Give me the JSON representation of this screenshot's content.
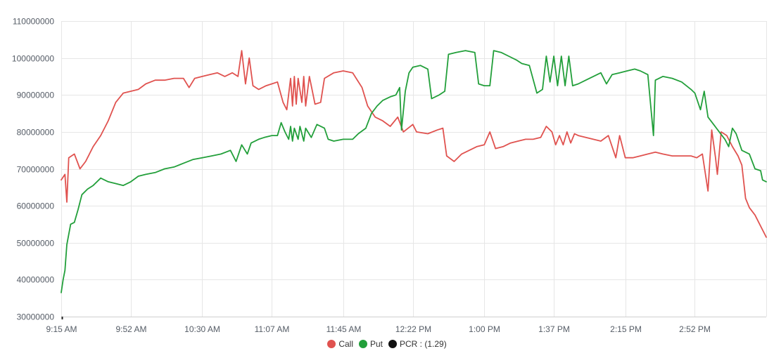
{
  "chart_data": {
    "type": "line",
    "title": "",
    "xlabel": "",
    "ylabel": "",
    "ylim": [
      30000000,
      110000000
    ],
    "yticks": [
      30000000,
      40000000,
      50000000,
      60000000,
      70000000,
      80000000,
      90000000,
      100000000,
      110000000
    ],
    "ytick_labels": [
      "30000000",
      "40000000",
      "50000000",
      "60000000",
      "70000000",
      "80000000",
      "90000000",
      "100000000",
      "110000000"
    ],
    "xlim": [
      "9:15 AM",
      "3:30 PM"
    ],
    "xtick_labels": [
      "9:15 AM",
      "9:52 AM",
      "10:30 AM",
      "11:07 AM",
      "11:45 AM",
      "12:22 PM",
      "1:00 PM",
      "1:37 PM",
      "2:15 PM",
      "2:52 PM"
    ],
    "grid": true,
    "legend_placement": "bottom-center",
    "series": [
      {
        "name": "Call",
        "color": "#e0524f",
        "points": [
          [
            "9:15 AM",
            67000000
          ],
          [
            "9:17 AM",
            68500000
          ],
          [
            "9:18 AM",
            61000000
          ],
          [
            "9:19 AM",
            73000000
          ],
          [
            "9:22 AM",
            74000000
          ],
          [
            "9:25 AM",
            70000000
          ],
          [
            "9:28 AM",
            72000000
          ],
          [
            "9:32 AM",
            76000000
          ],
          [
            "9:36 AM",
            79000000
          ],
          [
            "9:40 AM",
            83000000
          ],
          [
            "9:44 AM",
            88000000
          ],
          [
            "9:48 AM",
            90500000
          ],
          [
            "9:52 AM",
            91000000
          ],
          [
            "9:56 AM",
            91500000
          ],
          [
            "10:00 AM",
            93000000
          ],
          [
            "10:05 AM",
            94000000
          ],
          [
            "10:10 AM",
            94000000
          ],
          [
            "10:15 AM",
            94500000
          ],
          [
            "10:20 AM",
            94500000
          ],
          [
            "10:23 AM",
            92000000
          ],
          [
            "10:26 AM",
            94500000
          ],
          [
            "10:30 AM",
            95000000
          ],
          [
            "10:34 AM",
            95500000
          ],
          [
            "10:38 AM",
            96000000
          ],
          [
            "10:42 AM",
            95000000
          ],
          [
            "10:46 AM",
            96000000
          ],
          [
            "10:49 AM",
            95000000
          ],
          [
            "10:51 AM",
            102000000
          ],
          [
            "10:53 AM",
            93000000
          ],
          [
            "10:55 AM",
            100000000
          ],
          [
            "10:57 AM",
            92500000
          ],
          [
            "11:00 AM",
            91500000
          ],
          [
            "11:04 AM",
            92500000
          ],
          [
            "11:07 AM",
            93000000
          ],
          [
            "11:10 AM",
            93500000
          ],
          [
            "11:13 AM",
            88000000
          ],
          [
            "11:15 AM",
            86000000
          ],
          [
            "11:17 AM",
            94500000
          ],
          [
            "11:18 AM",
            87000000
          ],
          [
            "11:19 AM",
            95000000
          ],
          [
            "11:20 AM",
            87500000
          ],
          [
            "11:21 AM",
            94500000
          ],
          [
            "11:23 AM",
            88000000
          ],
          [
            "11:24 AM",
            95000000
          ],
          [
            "11:25 AM",
            87000000
          ],
          [
            "11:27 AM",
            95000000
          ],
          [
            "11:30 AM",
            87500000
          ],
          [
            "11:33 AM",
            88000000
          ],
          [
            "11:35 AM",
            94500000
          ],
          [
            "11:40 AM",
            96000000
          ],
          [
            "11:45 AM",
            96500000
          ],
          [
            "11:50 AM",
            96000000
          ],
          [
            "11:55 AM",
            92000000
          ],
          [
            "11:58 AM",
            87000000
          ],
          [
            "12:02 PM",
            84000000
          ],
          [
            "12:06 PM",
            83000000
          ],
          [
            "12:10 PM",
            81500000
          ],
          [
            "12:14 PM",
            84000000
          ],
          [
            "12:17 PM",
            80000000
          ],
          [
            "12:22 PM",
            82000000
          ],
          [
            "12:24 PM",
            80000000
          ],
          [
            "12:30 PM",
            79500000
          ],
          [
            "12:35 PM",
            80500000
          ],
          [
            "12:38 PM",
            81000000
          ],
          [
            "12:40 PM",
            73500000
          ],
          [
            "12:44 PM",
            72000000
          ],
          [
            "12:48 PM",
            74000000
          ],
          [
            "12:52 PM",
            75000000
          ],
          [
            "12:56 PM",
            76000000
          ],
          [
            "1:00 PM",
            76500000
          ],
          [
            "1:03 PM",
            80000000
          ],
          [
            "1:06 PM",
            75500000
          ],
          [
            "1:10 PM",
            76000000
          ],
          [
            "1:14 PM",
            77000000
          ],
          [
            "1:18 PM",
            77500000
          ],
          [
            "1:22 PM",
            78000000
          ],
          [
            "1:26 PM",
            78000000
          ],
          [
            "1:30 PM",
            78500000
          ],
          [
            "1:33 PM",
            81500000
          ],
          [
            "1:36 PM",
            80000000
          ],
          [
            "1:38 PM",
            76500000
          ],
          [
            "1:40 PM",
            79000000
          ],
          [
            "1:42 PM",
            76500000
          ],
          [
            "1:44 PM",
            80000000
          ],
          [
            "1:46 PM",
            77000000
          ],
          [
            "1:48 PM",
            79500000
          ],
          [
            "1:50 PM",
            79000000
          ],
          [
            "1:54 PM",
            78500000
          ],
          [
            "1:58 PM",
            78000000
          ],
          [
            "2:02 PM",
            77500000
          ],
          [
            "2:06 PM",
            79000000
          ],
          [
            "2:10 PM",
            73000000
          ],
          [
            "2:12 PM",
            79000000
          ],
          [
            "2:15 PM",
            73000000
          ],
          [
            "2:19 PM",
            73000000
          ],
          [
            "2:23 PM",
            73500000
          ],
          [
            "2:27 PM",
            74000000
          ],
          [
            "2:31 PM",
            74500000
          ],
          [
            "2:35 PM",
            74000000
          ],
          [
            "2:40 PM",
            73500000
          ],
          [
            "2:45 PM",
            73500000
          ],
          [
            "2:50 PM",
            73500000
          ],
          [
            "2:53 PM",
            73000000
          ],
          [
            "2:56 PM",
            74000000
          ],
          [
            "2:59 PM",
            64000000
          ],
          [
            "3:01 PM",
            80500000
          ],
          [
            "3:03 PM",
            73000000
          ],
          [
            "3:04 PM",
            68500000
          ],
          [
            "3:06 PM",
            80000000
          ],
          [
            "3:09 PM",
            79000000
          ],
          [
            "3:12 PM",
            76000000
          ],
          [
            "3:15 PM",
            73500000
          ],
          [
            "3:17 PM",
            71000000
          ],
          [
            "3:19 PM",
            62000000
          ],
          [
            "3:21 PM",
            59500000
          ],
          [
            "3:24 PM",
            57500000
          ],
          [
            "3:27 PM",
            54500000
          ],
          [
            "3:30 PM",
            51500000
          ]
        ]
      },
      {
        "name": "Put",
        "color": "#229f3a",
        "points": [
          [
            "9:15 AM",
            36500000
          ],
          [
            "9:16 AM",
            40000000
          ],
          [
            "9:17 AM",
            42500000
          ],
          [
            "9:18 AM",
            49500000
          ],
          [
            "9:20 AM",
            55000000
          ],
          [
            "9:22 AM",
            55500000
          ],
          [
            "9:24 AM",
            59000000
          ],
          [
            "9:26 AM",
            63000000
          ],
          [
            "9:29 AM",
            64500000
          ],
          [
            "9:32 AM",
            65500000
          ],
          [
            "9:36 AM",
            67500000
          ],
          [
            "9:40 AM",
            66500000
          ],
          [
            "9:44 AM",
            66000000
          ],
          [
            "9:48 AM",
            65500000
          ],
          [
            "9:52 AM",
            66500000
          ],
          [
            "9:56 AM",
            68000000
          ],
          [
            "10:00 AM",
            68500000
          ],
          [
            "10:05 AM",
            69000000
          ],
          [
            "10:10 AM",
            70000000
          ],
          [
            "10:15 AM",
            70500000
          ],
          [
            "10:20 AM",
            71500000
          ],
          [
            "10:25 AM",
            72500000
          ],
          [
            "10:30 AM",
            73000000
          ],
          [
            "10:35 AM",
            73500000
          ],
          [
            "10:40 AM",
            74000000
          ],
          [
            "10:45 AM",
            75000000
          ],
          [
            "10:48 AM",
            72000000
          ],
          [
            "10:51 AM",
            76500000
          ],
          [
            "10:54 AM",
            74000000
          ],
          [
            "10:56 AM",
            77000000
          ],
          [
            "11:00 AM",
            78000000
          ],
          [
            "11:03 AM",
            78500000
          ],
          [
            "11:07 AM",
            79000000
          ],
          [
            "11:10 AM",
            79000000
          ],
          [
            "11:12 AM",
            82500000
          ],
          [
            "11:14 AM",
            80000000
          ],
          [
            "11:16 AM",
            78000000
          ],
          [
            "11:17 AM",
            81500000
          ],
          [
            "11:18 AM",
            77500000
          ],
          [
            "11:19 AM",
            81000000
          ],
          [
            "11:21 AM",
            78000000
          ],
          [
            "11:22 AM",
            81500000
          ],
          [
            "11:24 AM",
            77500000
          ],
          [
            "11:25 AM",
            81000000
          ],
          [
            "11:28 AM",
            78500000
          ],
          [
            "11:31 AM",
            82000000
          ],
          [
            "11:35 AM",
            81000000
          ],
          [
            "11:37 AM",
            78000000
          ],
          [
            "11:40 AM",
            77500000
          ],
          [
            "11:45 AM",
            78000000
          ],
          [
            "11:50 AM",
            78000000
          ],
          [
            "11:53 AM",
            79500000
          ],
          [
            "11:57 AM",
            81000000
          ],
          [
            "12:00 PM",
            85000000
          ],
          [
            "12:03 PM",
            87000000
          ],
          [
            "12:06 PM",
            88500000
          ],
          [
            "12:10 PM",
            89500000
          ],
          [
            "12:13 PM",
            90000000
          ],
          [
            "12:15 PM",
            92000000
          ],
          [
            "12:16 PM",
            80500000
          ],
          [
            "12:18 PM",
            91000000
          ],
          [
            "12:20 PM",
            96000000
          ],
          [
            "12:22 PM",
            97500000
          ],
          [
            "12:26 PM",
            98000000
          ],
          [
            "12:30 PM",
            97000000
          ],
          [
            "12:32 PM",
            89000000
          ],
          [
            "12:36 PM",
            90000000
          ],
          [
            "12:39 PM",
            91000000
          ],
          [
            "12:41 PM",
            101000000
          ],
          [
            "12:45 PM",
            101500000
          ],
          [
            "12:50 PM",
            102000000
          ],
          [
            "12:55 PM",
            101500000
          ],
          [
            "12:57 PM",
            93000000
          ],
          [
            "1:00 PM",
            92500000
          ],
          [
            "1:03 PM",
            92500000
          ],
          [
            "1:05 PM",
            102000000
          ],
          [
            "1:09 PM",
            101500000
          ],
          [
            "1:13 PM",
            100500000
          ],
          [
            "1:17 PM",
            99500000
          ],
          [
            "1:20 PM",
            98500000
          ],
          [
            "1:24 PM",
            98000000
          ],
          [
            "1:28 PM",
            90500000
          ],
          [
            "1:31 PM",
            91500000
          ],
          [
            "1:33 PM",
            100500000
          ],
          [
            "1:35 PM",
            93500000
          ],
          [
            "1:37 PM",
            100500000
          ],
          [
            "1:39 PM",
            92500000
          ],
          [
            "1:41 PM",
            100500000
          ],
          [
            "1:43 PM",
            92500000
          ],
          [
            "1:45 PM",
            100500000
          ],
          [
            "1:47 PM",
            92500000
          ],
          [
            "1:50 PM",
            93000000
          ],
          [
            "1:54 PM",
            94000000
          ],
          [
            "1:58 PM",
            95000000
          ],
          [
            "2:02 PM",
            96000000
          ],
          [
            "2:05 PM",
            93000000
          ],
          [
            "2:08 PM",
            95500000
          ],
          [
            "2:12 PM",
            96000000
          ],
          [
            "2:16 PM",
            96500000
          ],
          [
            "2:20 PM",
            97000000
          ],
          [
            "2:23 PM",
            96500000
          ],
          [
            "2:27 PM",
            95500000
          ],
          [
            "2:30 PM",
            79000000
          ],
          [
            "2:31 PM",
            94000000
          ],
          [
            "2:35 PM",
            95000000
          ],
          [
            "2:40 PM",
            94500000
          ],
          [
            "2:45 PM",
            93500000
          ],
          [
            "2:50 PM",
            91500000
          ],
          [
            "2:52 PM",
            90500000
          ],
          [
            "2:55 PM",
            86000000
          ],
          [
            "2:57 PM",
            91000000
          ],
          [
            "2:59 PM",
            84000000
          ],
          [
            "3:02 PM",
            82000000
          ],
          [
            "3:05 PM",
            80000000
          ],
          [
            "3:08 PM",
            78000000
          ],
          [
            "3:10 PM",
            76000000
          ],
          [
            "3:12 PM",
            81000000
          ],
          [
            "3:14 PM",
            79500000
          ],
          [
            "3:17 PM",
            75000000
          ],
          [
            "3:21 PM",
            74000000
          ],
          [
            "3:24 PM",
            70000000
          ],
          [
            "3:27 PM",
            69500000
          ],
          [
            "3:28 PM",
            67000000
          ],
          [
            "3:30 PM",
            66500000
          ]
        ]
      }
    ],
    "legend": [
      {
        "label": "Call",
        "color": "#e0524f"
      },
      {
        "label": "Put",
        "color": "#229f3a"
      },
      {
        "label": "PCR : (1.29)",
        "color": "#111111"
      }
    ]
  }
}
